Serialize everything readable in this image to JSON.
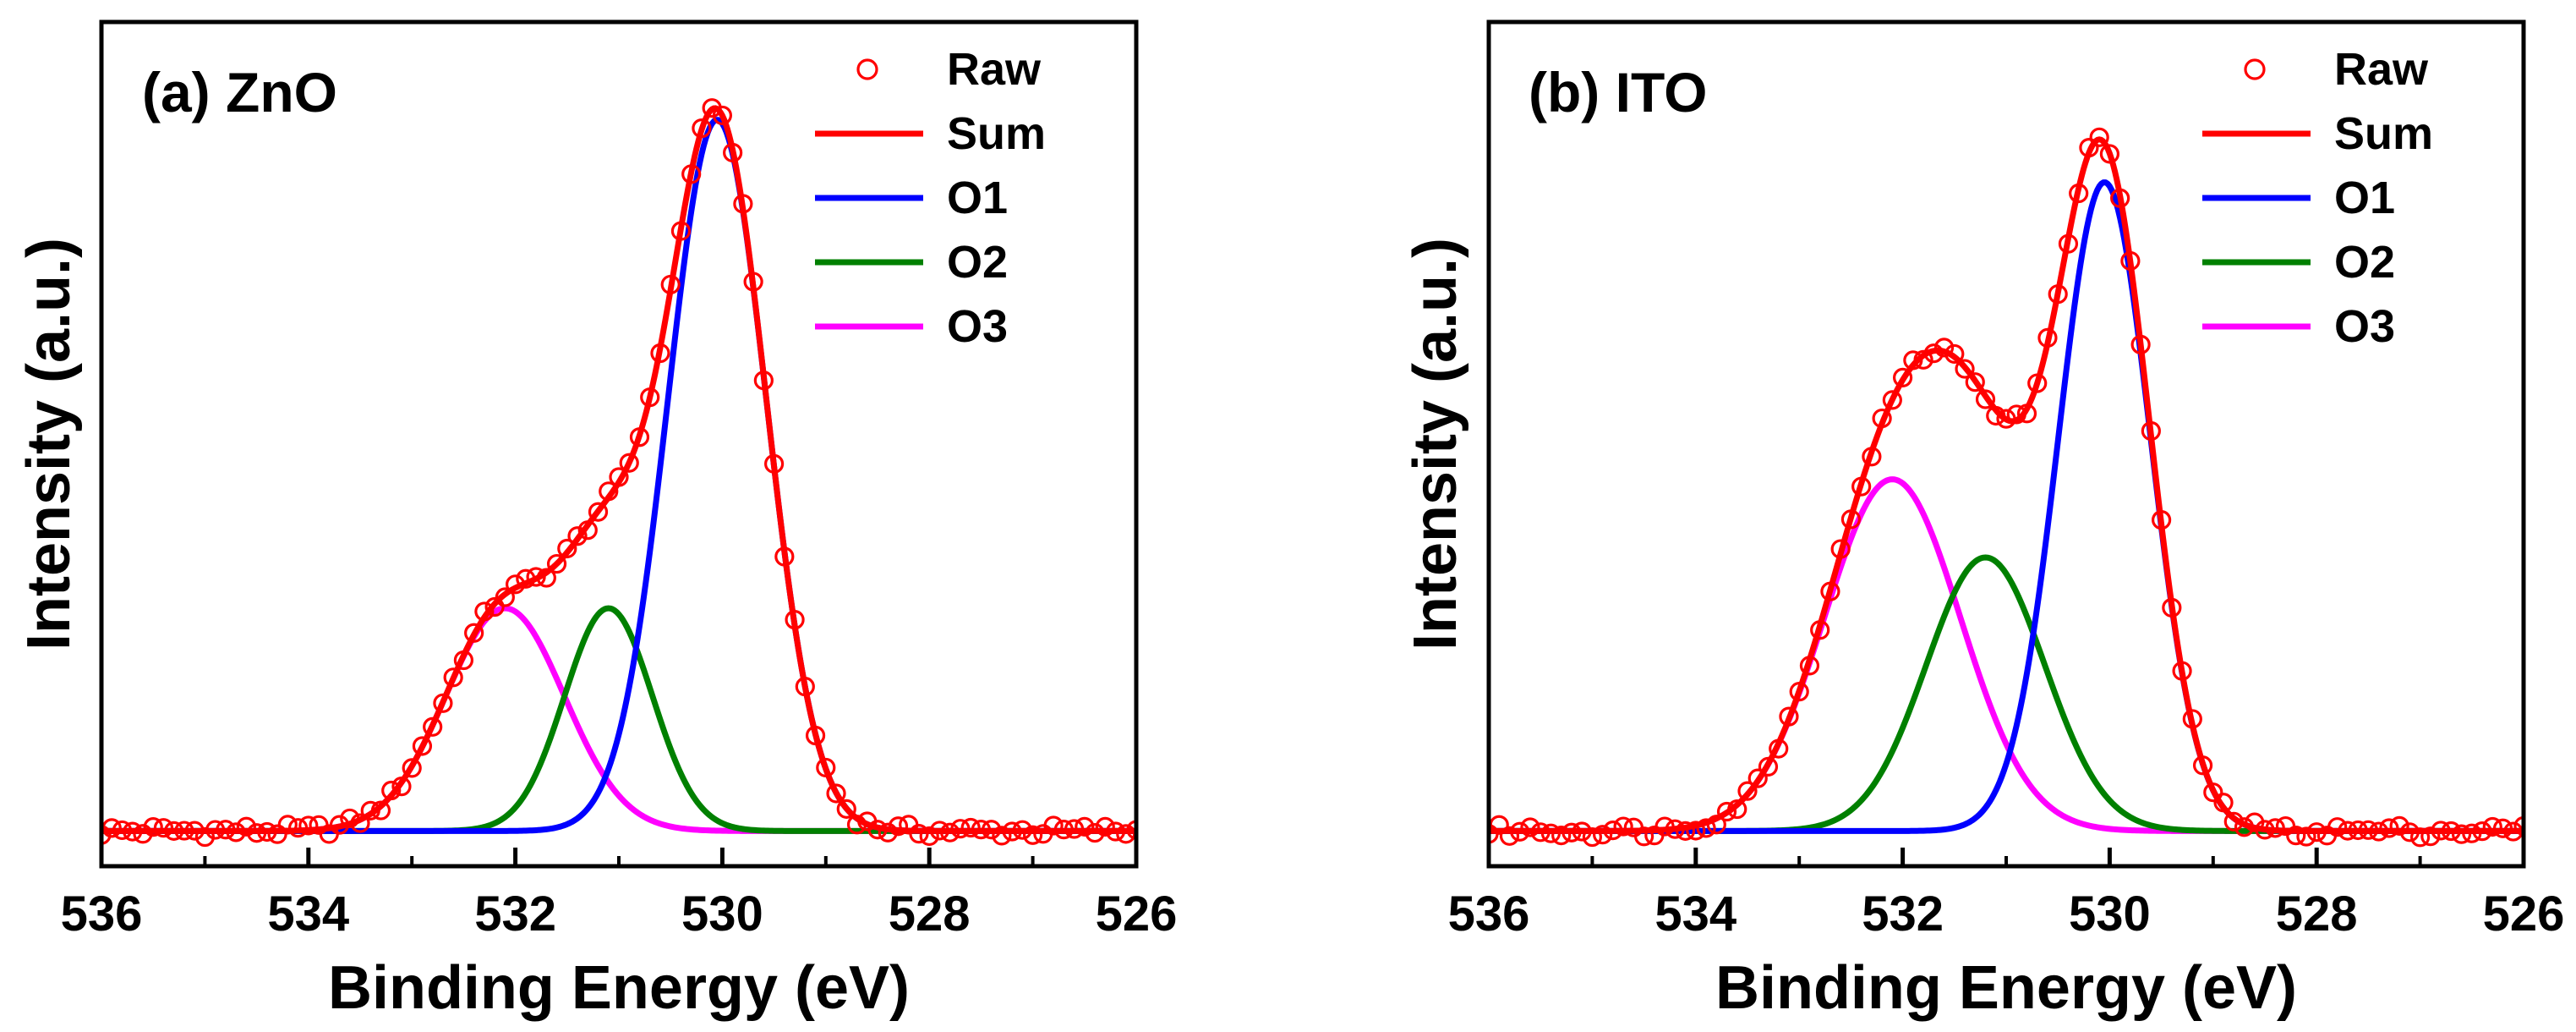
{
  "figure": {
    "panel_count": 2
  },
  "chart_data": [
    {
      "type": "line",
      "title": "(a) ZnO",
      "xlabel": "Binding Energy (eV)",
      "ylabel": "Intensity (a.u.)",
      "xlim": [
        536,
        526
      ],
      "ylim": [
        0,
        1.08
      ],
      "x_reversed": true,
      "xticks": [
        536,
        534,
        532,
        530,
        528,
        526
      ],
      "xtick_labels": [
        "536",
        "534",
        "532",
        "530",
        "528",
        "526"
      ],
      "yticks_shown": false,
      "legend": {
        "placement": "top-right",
        "entries": [
          {
            "name": "Raw",
            "style": "open-circle",
            "color": "#ff0000"
          },
          {
            "name": "Sum",
            "style": "line",
            "color": "#ff0000"
          },
          {
            "name": "O1",
            "style": "line",
            "color": "#0000ff"
          },
          {
            "name": "O2",
            "style": "line",
            "color": "#008000"
          },
          {
            "name": "O3",
            "style": "line",
            "color": "#ff00ff"
          }
        ]
      },
      "baseline": 0.045,
      "components": [
        {
          "name": "O1",
          "color": "#0000ff",
          "center_eV": 530.05,
          "height": 0.91,
          "fwhm_eV": 1.12
        },
        {
          "name": "O2",
          "color": "#008000",
          "center_eV": 531.1,
          "height": 0.285,
          "fwhm_eV": 1.0
        },
        {
          "name": "O3",
          "color": "#ff00ff",
          "center_eV": 532.1,
          "height": 0.285,
          "fwhm_eV": 1.35
        }
      ],
      "sum": {
        "name": "Sum",
        "color": "#ff0000"
      },
      "raw": {
        "name": "Raw",
        "color": "#ff0000",
        "range_eV": [
          536,
          526
        ],
        "step_eV": 0.1,
        "noise_amplitude": 0.008
      }
    },
    {
      "type": "line",
      "title": "(b) ITO",
      "xlabel": "Binding Energy (eV)",
      "ylabel": "Intensity (a.u.)",
      "xlim": [
        536,
        526
      ],
      "ylim": [
        0,
        1.08
      ],
      "x_reversed": true,
      "xticks": [
        536,
        534,
        532,
        530,
        528,
        526
      ],
      "xtick_labels": [
        "536",
        "534",
        "532",
        "530",
        "528",
        "526"
      ],
      "yticks_shown": false,
      "legend": {
        "placement": "top-right",
        "entries": [
          {
            "name": "Raw",
            "style": "open-circle",
            "color": "#ff0000"
          },
          {
            "name": "Sum",
            "style": "line",
            "color": "#ff0000"
          },
          {
            "name": "O1",
            "style": "line",
            "color": "#0000ff"
          },
          {
            "name": "O2",
            "style": "line",
            "color": "#008000"
          },
          {
            "name": "O3",
            "style": "line",
            "color": "#ff00ff"
          }
        ]
      },
      "baseline": 0.045,
      "components": [
        {
          "name": "O1",
          "color": "#0000ff",
          "center_eV": 530.05,
          "height": 0.83,
          "fwhm_eV": 1.05
        },
        {
          "name": "O2",
          "color": "#008000",
          "center_eV": 531.2,
          "height": 0.35,
          "fwhm_eV": 1.35
        },
        {
          "name": "O3",
          "color": "#ff00ff",
          "center_eV": 532.1,
          "height": 0.45,
          "fwhm_eV": 1.55
        }
      ],
      "sum": {
        "name": "Sum",
        "color": "#ff0000"
      },
      "raw": {
        "name": "Raw",
        "color": "#ff0000",
        "range_eV": [
          536,
          526
        ],
        "step_eV": 0.1,
        "noise_amplitude": 0.008
      }
    }
  ]
}
